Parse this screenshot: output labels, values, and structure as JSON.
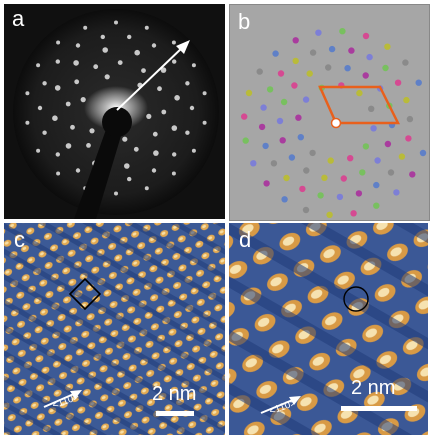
{
  "figure": {
    "panels": [
      {
        "label": "a",
        "kind": "LEED pattern"
      },
      {
        "label": "b",
        "kind": "simulated diffraction pattern"
      },
      {
        "label": "c",
        "scale_bar": "2 nm",
        "direction": "<110>"
      },
      {
        "label": "d",
        "scale_bar": "2 nm",
        "direction": "<110>"
      }
    ]
  },
  "colors": {
    "leed_background": "#101010",
    "sim_background": "#a6a6a6",
    "unit_cell": "#e8601c",
    "stm_dark": "#2c4a8c",
    "stm_light": "#e3aa52"
  },
  "sim_spot_colors": [
    "#7d7fd6",
    "#78c05f",
    "#d54a92",
    "#b9bb39",
    "#8a8a8a",
    "#5f80c7",
    "#a93c9e"
  ]
}
